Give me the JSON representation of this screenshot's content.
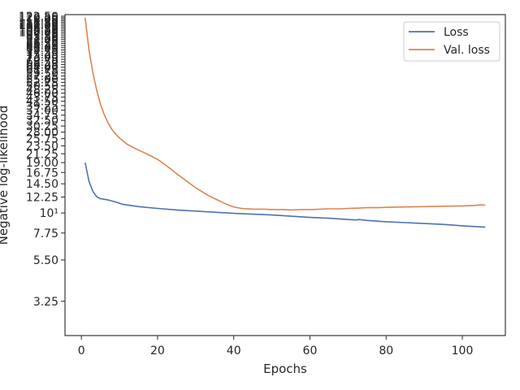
{
  "chart_data": {
    "type": "line",
    "xlabel": "Epochs",
    "ylabel": "Negative log-likelihood",
    "yscale": "log",
    "xlim": [
      -4.3,
      111.3
    ],
    "ylim": [
      2.1,
      125.0
    ],
    "grid": false,
    "legend_placement": "top-right",
    "x_ticks": [
      0,
      20,
      40,
      60,
      80,
      100
    ],
    "x_tick_labels": [
      "0",
      "20",
      "40",
      "60",
      "80",
      "100"
    ],
    "y_ticks": [
      3.25,
      5.5,
      7.75,
      10,
      12.25,
      14.5,
      16.75,
      19.0,
      21.25,
      23.5,
      25.75,
      28.0,
      30.25,
      32.5,
      34.75,
      37.0,
      39.25,
      41.5,
      43.75,
      46.0,
      48.25,
      50.5,
      52.75,
      55.0,
      57.25,
      59.5,
      61.75,
      64.0,
      66.25,
      68.5,
      70.75,
      73.0,
      75.25,
      77.5,
      79.75,
      82.0,
      84.25,
      86.5,
      88.75,
      91.0,
      93.25,
      95.5,
      97.75,
      100.0,
      102.25,
      104.5,
      106.75,
      109.0,
      111.25,
      113.5,
      115.75,
      118.0,
      120.25,
      122.5
    ],
    "y_tick_labels": [
      "3.25",
      "5.50",
      "7.75",
      "10¹",
      "12.25",
      "14.50",
      "16.75",
      "19.00",
      "21.25",
      "23.50",
      "25.75",
      "28.00",
      "30.25",
      "32.50",
      "34.75",
      "37.00",
      "39.25",
      "41.50",
      "43.75",
      "46.00",
      "48.25",
      "50.50",
      "52.75",
      "55.00",
      "57.25",
      "59.50",
      "61.75",
      "64.00",
      "66.25",
      "68.50",
      "70.75",
      "73.00",
      "75.25",
      "77.50",
      "79.75",
      "82.00",
      "84.25",
      "86.50",
      "88.75",
      "91.00",
      "93.25",
      "95.50",
      "97.75",
      "100.00",
      "102.25",
      "104.50",
      "106.75",
      "109.00",
      "111.25",
      "113.50",
      "115.75",
      "118.00",
      "120.25",
      "122.50"
    ],
    "series": [
      {
        "name": "Loss",
        "color": "#4c72b0",
        "x": [
          1,
          2,
          3,
          4,
          5,
          7,
          9,
          11,
          13,
          15,
          20,
          25,
          30,
          35,
          40,
          45,
          50,
          55,
          60,
          65,
          70,
          72,
          73,
          75,
          80,
          85,
          90,
          95,
          100,
          106
        ],
        "y": [
          19.0,
          15.0,
          13.2,
          12.3,
          12.0,
          11.8,
          11.5,
          11.15,
          11.0,
          10.85,
          10.6,
          10.4,
          10.25,
          10.1,
          9.95,
          9.85,
          9.75,
          9.6,
          9.45,
          9.35,
          9.2,
          9.15,
          9.2,
          9.1,
          8.95,
          8.85,
          8.75,
          8.65,
          8.5,
          8.35
        ]
      },
      {
        "name": "Val. loss",
        "color": "#dd8452",
        "x": [
          1,
          2,
          3,
          4,
          5,
          6,
          7,
          8,
          9,
          10,
          12,
          14,
          16,
          18,
          20,
          22,
          25,
          28,
          30,
          33,
          35,
          38,
          40,
          42,
          45,
          48,
          50,
          53,
          55,
          58,
          60,
          63,
          65,
          68,
          70,
          73,
          75,
          78,
          80,
          85,
          90,
          95,
          100,
          103,
          105,
          106
        ],
        "y": [
          120.0,
          80.0,
          60.0,
          48.0,
          40.0,
          35.0,
          31.5,
          29.0,
          27.3,
          26.0,
          24.0,
          22.8,
          21.8,
          20.8,
          19.8,
          18.5,
          16.5,
          14.8,
          13.8,
          12.6,
          12.0,
          11.2,
          10.8,
          10.6,
          10.5,
          10.5,
          10.45,
          10.45,
          10.4,
          10.45,
          10.45,
          10.5,
          10.55,
          10.55,
          10.6,
          10.65,
          10.7,
          10.7,
          10.75,
          10.8,
          10.85,
          10.9,
          10.95,
          11.0,
          11.1,
          11.05
        ]
      }
    ]
  }
}
